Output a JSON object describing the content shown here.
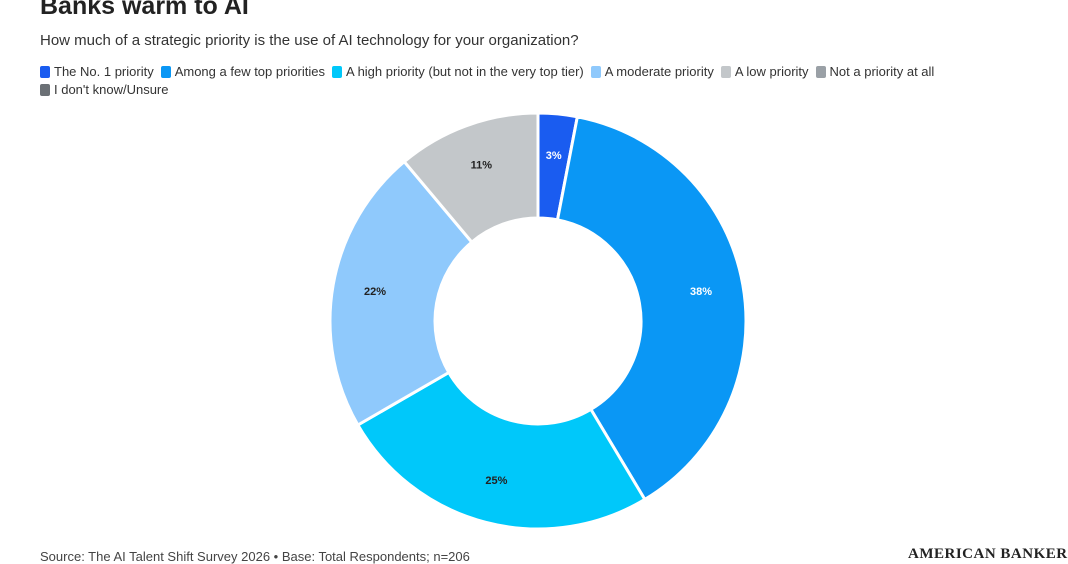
{
  "chart_data": {
    "type": "donut",
    "title": "Banks warm to AI",
    "subtitle": "How much of a strategic priority is the use of AI technology for your organization?",
    "categories": [
      "The No. 1 priority",
      "Among a few top priorities",
      "A high priority (but not in the very top tier)",
      "A moderate priority",
      "A low priority",
      "Not a priority at all",
      "I don't know/Unsure"
    ],
    "values": [
      3,
      38,
      25,
      22,
      11,
      0,
      0
    ],
    "value_labels": [
      "3%",
      "38%",
      "25%",
      "22%",
      "11%",
      null,
      null
    ],
    "colors": [
      "#1a5cf0",
      "#0a97f5",
      "#00c8fa",
      "#8fc9fc",
      "#c3c7ca",
      "#9aa0a6",
      "#6b7075"
    ],
    "source": "Source: The AI Talent Shift Survey 2026 • Base: Total Respondents; n=206",
    "logo": "AMERICAN BANKER"
  }
}
